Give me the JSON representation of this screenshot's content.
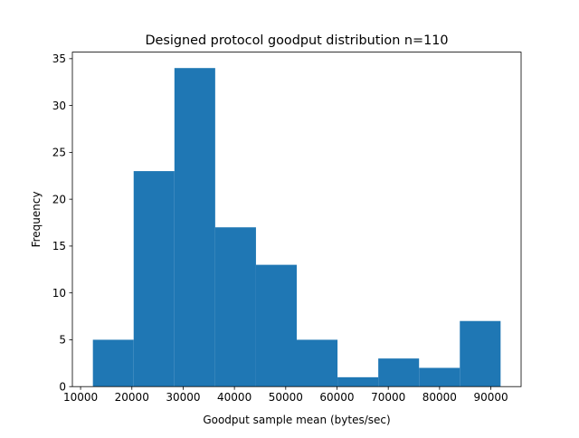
{
  "chart_data": {
    "type": "histogram",
    "title": "Designed protocol goodput distribution n=110",
    "xlabel": "Goodput sample mean (bytes/sec)",
    "ylabel": "Frequency",
    "xlim": [
      8400,
      95900
    ],
    "ylim": [
      0,
      35.7
    ],
    "xticks": [
      10000,
      20000,
      30000,
      40000,
      50000,
      60000,
      70000,
      80000,
      90000
    ],
    "xtick_labels": [
      "10000",
      "20000",
      "30000",
      "40000",
      "50000",
      "60000",
      "70000",
      "80000",
      "90000"
    ],
    "yticks": [
      0,
      5,
      10,
      15,
      20,
      25,
      30,
      35
    ],
    "ytick_labels": [
      "0",
      "5",
      "10",
      "15",
      "20",
      "25",
      "30",
      "35"
    ],
    "bin_edges": [
      12400,
      20350,
      28300,
      36250,
      44200,
      52150,
      60100,
      68050,
      76000,
      83950,
      91900
    ],
    "values": [
      5,
      23,
      34,
      17,
      13,
      5,
      1,
      3,
      2,
      7
    ],
    "bar_color": "#1f77b4",
    "grid": false,
    "legend": "none"
  }
}
